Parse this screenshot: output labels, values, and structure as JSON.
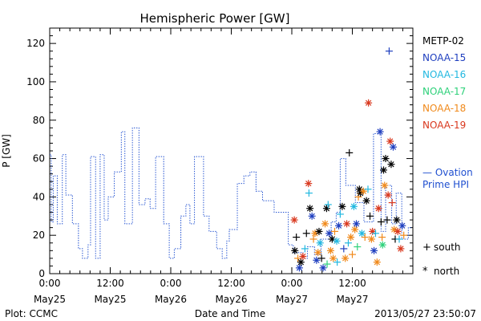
{
  "chart_data": {
    "type": "scatter",
    "title": "Hemispheric Power [GW]",
    "ylabel": "P [GW]",
    "xlabel": "Date and Time",
    "ylim": [
      0,
      128
    ],
    "xlim_hours": [
      0,
      72
    ],
    "yticks": [
      0,
      20,
      40,
      60,
      80,
      100,
      120
    ],
    "xticks": [
      {
        "h": 0,
        "time": "0:00",
        "date": "May25"
      },
      {
        "h": 12,
        "time": "12:00",
        "date": "May25"
      },
      {
        "h": 24,
        "time": "0:00",
        "date": "May26"
      },
      {
        "h": 36,
        "time": "12:00",
        "date": "May26"
      },
      {
        "h": 48,
        "time": "0:00",
        "date": "May27"
      },
      {
        "h": 60,
        "time": "12:00",
        "date": "May27"
      }
    ],
    "footer_left": "Plot: CCMC",
    "footer_right": "2013/05/27 23:50:07",
    "legend": [
      {
        "name": "METP-02",
        "color": "#000000"
      },
      {
        "name": "NOAA-15",
        "color": "#1f3fbf"
      },
      {
        "name": "NOAA-16",
        "color": "#22b8e0"
      },
      {
        "name": "NOAA-17",
        "color": "#2ed17a"
      },
      {
        "name": "NOAA-18",
        "color": "#f08a1c"
      },
      {
        "name": "NOAA-19",
        "color": "#d9381e"
      }
    ],
    "ovation_label": [
      "— Ovation",
      "Prime HPI"
    ],
    "ovation_color": "#1f4fd0",
    "marker_legend": [
      {
        "symbol": "+",
        "label": "south"
      },
      {
        "symbol": "*",
        "label": "north"
      }
    ],
    "ovation_series": [
      [
        0,
        62
      ],
      [
        0.3,
        27
      ],
      [
        0.7,
        51
      ],
      [
        1.5,
        26
      ],
      [
        2.5,
        62
      ],
      [
        3.2,
        41
      ],
      [
        4.5,
        26
      ],
      [
        5.7,
        13
      ],
      [
        6.5,
        8
      ],
      [
        7.6,
        15
      ],
      [
        8.1,
        61
      ],
      [
        9.1,
        8
      ],
      [
        10,
        62
      ],
      [
        10.8,
        28
      ],
      [
        11.6,
        40
      ],
      [
        12.8,
        53
      ],
      [
        14.2,
        74
      ],
      [
        14.9,
        26
      ],
      [
        16.4,
        76
      ],
      [
        17.7,
        36
      ],
      [
        18.9,
        39
      ],
      [
        19.9,
        34
      ],
      [
        21,
        61
      ],
      [
        22.6,
        26
      ],
      [
        23.7,
        8
      ],
      [
        24.7,
        13
      ],
      [
        26,
        30
      ],
      [
        27,
        36
      ],
      [
        27.8,
        26
      ],
      [
        28.7,
        61
      ],
      [
        30.5,
        30
      ],
      [
        31.6,
        22
      ],
      [
        33.1,
        13
      ],
      [
        34.2,
        8
      ],
      [
        35.1,
        17
      ],
      [
        35.6,
        23
      ],
      [
        37.2,
        47
      ],
      [
        38.5,
        51
      ],
      [
        39.7,
        53
      ],
      [
        40.9,
        43
      ],
      [
        42.2,
        38
      ],
      [
        44.5,
        32
      ],
      [
        47.3,
        15
      ],
      [
        48.3,
        11
      ],
      [
        50.2,
        8
      ],
      [
        51.1,
        14
      ],
      [
        52.5,
        10
      ],
      [
        53.8,
        18
      ],
      [
        55.8,
        27
      ],
      [
        56.8,
        32
      ],
      [
        57.6,
        60
      ],
      [
        58.7,
        46
      ],
      [
        60.6,
        37
      ],
      [
        62.3,
        27
      ],
      [
        64.2,
        73
      ],
      [
        65.7,
        22
      ],
      [
        66.6,
        46
      ],
      [
        67.8,
        26
      ],
      [
        68.7,
        42
      ],
      [
        69.8,
        18
      ],
      [
        71.1,
        24
      ]
    ],
    "points": [
      {
        "h": 48.5,
        "y": 28,
        "s": "north",
        "c": "NOAA-19"
      },
      {
        "h": 48.6,
        "y": 12,
        "s": "north",
        "c": "METP-02"
      },
      {
        "h": 48.9,
        "y": 19,
        "s": "south",
        "c": "METP-02"
      },
      {
        "h": 49.2,
        "y": 8,
        "s": "south",
        "c": "NOAA-18"
      },
      {
        "h": 49.5,
        "y": 3,
        "s": "north",
        "c": "NOAA-15"
      },
      {
        "h": 49.8,
        "y": 6,
        "s": "north",
        "c": "METP-02"
      },
      {
        "h": 50.2,
        "y": 9,
        "s": "north",
        "c": "NOAA-19"
      },
      {
        "h": 50.6,
        "y": 13,
        "s": "south",
        "c": "NOAA-16"
      },
      {
        "h": 50.9,
        "y": 21,
        "s": "south",
        "c": "METP-02"
      },
      {
        "h": 51.3,
        "y": 47,
        "s": "north",
        "c": "NOAA-19"
      },
      {
        "h": 51.4,
        "y": 42,
        "s": "south",
        "c": "NOAA-16"
      },
      {
        "h": 51.6,
        "y": 34,
        "s": "north",
        "c": "METP-02"
      },
      {
        "h": 52.0,
        "y": 30,
        "s": "north",
        "c": "NOAA-15"
      },
      {
        "h": 52.3,
        "y": 18,
        "s": "south",
        "c": "NOAA-18"
      },
      {
        "h": 52.6,
        "y": 21,
        "s": "north",
        "c": "NOAA-18"
      },
      {
        "h": 52.9,
        "y": 7,
        "s": "north",
        "c": "NOAA-15"
      },
      {
        "h": 53.2,
        "y": 11,
        "s": "north",
        "c": "NOAA-18"
      },
      {
        "h": 53.4,
        "y": 22,
        "s": "north",
        "c": "METP-02"
      },
      {
        "h": 53.6,
        "y": 16,
        "s": "north",
        "c": "NOAA-16"
      },
      {
        "h": 53.9,
        "y": 8,
        "s": "south",
        "c": "METP-02"
      },
      {
        "h": 54.2,
        "y": 3,
        "s": "north",
        "c": "NOAA-15"
      },
      {
        "h": 54.6,
        "y": 26,
        "s": "north",
        "c": "NOAA-18"
      },
      {
        "h": 54.9,
        "y": 34,
        "s": "north",
        "c": "METP-02"
      },
      {
        "h": 55.2,
        "y": 36,
        "s": "south",
        "c": "NOAA-16"
      },
      {
        "h": 55.4,
        "y": 21,
        "s": "north",
        "c": "NOAA-15"
      },
      {
        "h": 55.7,
        "y": 12,
        "s": "north",
        "c": "NOAA-18"
      },
      {
        "h": 56.0,
        "y": 18,
        "s": "north",
        "c": "METP-02"
      },
      {
        "h": 56.2,
        "y": 8,
        "s": "north",
        "c": "NOAA-18"
      },
      {
        "h": 56.5,
        "y": 22,
        "s": "south",
        "c": "NOAA-18"
      },
      {
        "h": 56.9,
        "y": 17,
        "s": "north",
        "c": "NOAA-16"
      },
      {
        "h": 57.3,
        "y": 25,
        "s": "north",
        "c": "NOAA-15"
      },
      {
        "h": 57.6,
        "y": 31,
        "s": "south",
        "c": "NOAA-16"
      },
      {
        "h": 58.0,
        "y": 35,
        "s": "north",
        "c": "METP-02"
      },
      {
        "h": 58.3,
        "y": 13,
        "s": "south",
        "c": "NOAA-15"
      },
      {
        "h": 58.6,
        "y": 8,
        "s": "north",
        "c": "NOAA-18"
      },
      {
        "h": 58.9,
        "y": 26,
        "s": "north",
        "c": "NOAA-19"
      },
      {
        "h": 59.2,
        "y": 16,
        "s": "south",
        "c": "NOAA-16"
      },
      {
        "h": 59.4,
        "y": 63,
        "s": "south",
        "c": "METP-02"
      },
      {
        "h": 59.7,
        "y": 19,
        "s": "north",
        "c": "NOAA-18"
      },
      {
        "h": 60.0,
        "y": 10,
        "s": "south",
        "c": "NOAA-18"
      },
      {
        "h": 60.3,
        "y": 35,
        "s": "north",
        "c": "NOAA-16"
      },
      {
        "h": 60.5,
        "y": 23,
        "s": "north",
        "c": "NOAA-18"
      },
      {
        "h": 60.8,
        "y": 26,
        "s": "north",
        "c": "NOAA-15"
      },
      {
        "h": 61.2,
        "y": 40,
        "s": "south",
        "c": "NOAA-18"
      },
      {
        "h": 61.4,
        "y": 44,
        "s": "north",
        "c": "METP-02"
      },
      {
        "h": 61.6,
        "y": 42,
        "s": "north",
        "c": "METP-02"
      },
      {
        "h": 61.9,
        "y": 21,
        "s": "north",
        "c": "NOAA-16"
      },
      {
        "h": 62.2,
        "y": 43,
        "s": "north",
        "c": "NOAA-18"
      },
      {
        "h": 62.5,
        "y": 19,
        "s": "south",
        "c": "NOAA-18"
      },
      {
        "h": 62.8,
        "y": 38,
        "s": "north",
        "c": "METP-02"
      },
      {
        "h": 63.1,
        "y": 44,
        "s": "south",
        "c": "NOAA-16"
      },
      {
        "h": 63.2,
        "y": 89,
        "s": "north",
        "c": "NOAA-19"
      },
      {
        "h": 63.5,
        "y": 30,
        "s": "south",
        "c": "METP-02"
      },
      {
        "h": 63.8,
        "y": 18,
        "s": "north",
        "c": "NOAA-18"
      },
      {
        "h": 64.0,
        "y": 22,
        "s": "north",
        "c": "NOAA-19"
      },
      {
        "h": 64.3,
        "y": 12,
        "s": "north",
        "c": "NOAA-15"
      },
      {
        "h": 64.6,
        "y": 21,
        "s": "south",
        "c": "NOAA-16"
      },
      {
        "h": 64.9,
        "y": 6,
        "s": "north",
        "c": "NOAA-18"
      },
      {
        "h": 65.2,
        "y": 34,
        "s": "north",
        "c": "NOAA-19"
      },
      {
        "h": 65.5,
        "y": 74,
        "s": "north",
        "c": "NOAA-15"
      },
      {
        "h": 65.7,
        "y": 27,
        "s": "south",
        "c": "METP-02"
      },
      {
        "h": 65.9,
        "y": 19,
        "s": "south",
        "c": "NOAA-18"
      },
      {
        "h": 66.2,
        "y": 54,
        "s": "north",
        "c": "METP-02"
      },
      {
        "h": 66.4,
        "y": 46,
        "s": "north",
        "c": "NOAA-18"
      },
      {
        "h": 66.6,
        "y": 60,
        "s": "north",
        "c": "METP-02"
      },
      {
        "h": 66.9,
        "y": 28,
        "s": "south",
        "c": "METP-02"
      },
      {
        "h": 67.1,
        "y": 41,
        "s": "north",
        "c": "NOAA-19"
      },
      {
        "h": 67.3,
        "y": 116,
        "s": "south",
        "c": "NOAA-15"
      },
      {
        "h": 67.5,
        "y": 69,
        "s": "north",
        "c": "NOAA-19"
      },
      {
        "h": 67.7,
        "y": 57,
        "s": "north",
        "c": "METP-02"
      },
      {
        "h": 67.9,
        "y": 37,
        "s": "south",
        "c": "NOAA-19"
      },
      {
        "h": 68.1,
        "y": 66,
        "s": "north",
        "c": "NOAA-15"
      },
      {
        "h": 68.3,
        "y": 23,
        "s": "north",
        "c": "NOAA-18"
      },
      {
        "h": 68.5,
        "y": 18,
        "s": "south",
        "c": "METP-02"
      },
      {
        "h": 68.8,
        "y": 28,
        "s": "north",
        "c": "METP-02"
      },
      {
        "h": 69.0,
        "y": 22,
        "s": "north",
        "c": "NOAA-19"
      },
      {
        "h": 69.3,
        "y": 18,
        "s": "south",
        "c": "NOAA-16"
      },
      {
        "h": 69.6,
        "y": 13,
        "s": "north",
        "c": "NOAA-19"
      },
      {
        "h": 69.9,
        "y": 25,
        "s": "north",
        "c": "NOAA-15"
      },
      {
        "h": 70.2,
        "y": 20,
        "s": "south",
        "c": "NOAA-18"
      },
      {
        "h": 57.0,
        "y": 6,
        "s": "south",
        "c": "NOAA-16"
      },
      {
        "h": 55.0,
        "y": 5,
        "s": "south",
        "c": "NOAA-17"
      },
      {
        "h": 61.0,
        "y": 14,
        "s": "south",
        "c": "NOAA-17"
      },
      {
        "h": 66.0,
        "y": 15,
        "s": "north",
        "c": "NOAA-17"
      }
    ]
  }
}
